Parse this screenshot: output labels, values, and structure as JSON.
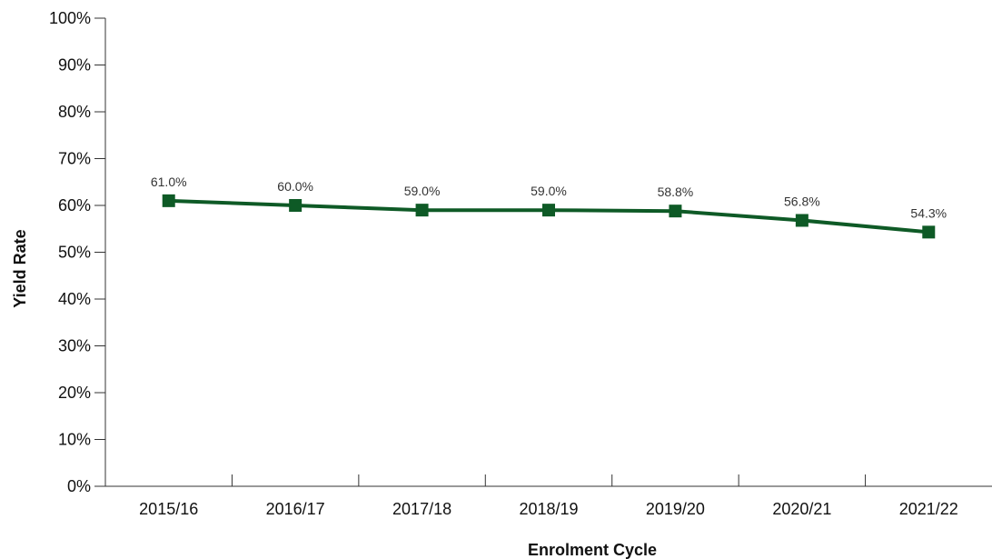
{
  "chart_data": {
    "type": "line",
    "title": "",
    "xlabel": "Enrolment Cycle",
    "ylabel": "Yield Rate",
    "categories": [
      "2015/16",
      "2016/17",
      "2017/18",
      "2018/19",
      "2019/20",
      "2020/21",
      "2021/22"
    ],
    "series": [
      {
        "values": [
          61.0,
          60.0,
          59.0,
          59.0,
          58.8,
          56.8,
          54.3
        ],
        "labels": [
          "61.0%",
          "60.0%",
          "59.0%",
          "59.0%",
          "58.8%",
          "56.8%",
          "54.3%"
        ],
        "color": "#0e5a26"
      }
    ],
    "ylim": [
      0,
      100
    ],
    "yticks": [
      0,
      10,
      20,
      30,
      40,
      50,
      60,
      70,
      80,
      90,
      100
    ],
    "ytick_labels": [
      "0%",
      "10%",
      "20%",
      "30%",
      "40%",
      "50%",
      "60%",
      "70%",
      "80%",
      "90%",
      "100%"
    ],
    "grid": false,
    "legend": "none",
    "marker": "square"
  }
}
